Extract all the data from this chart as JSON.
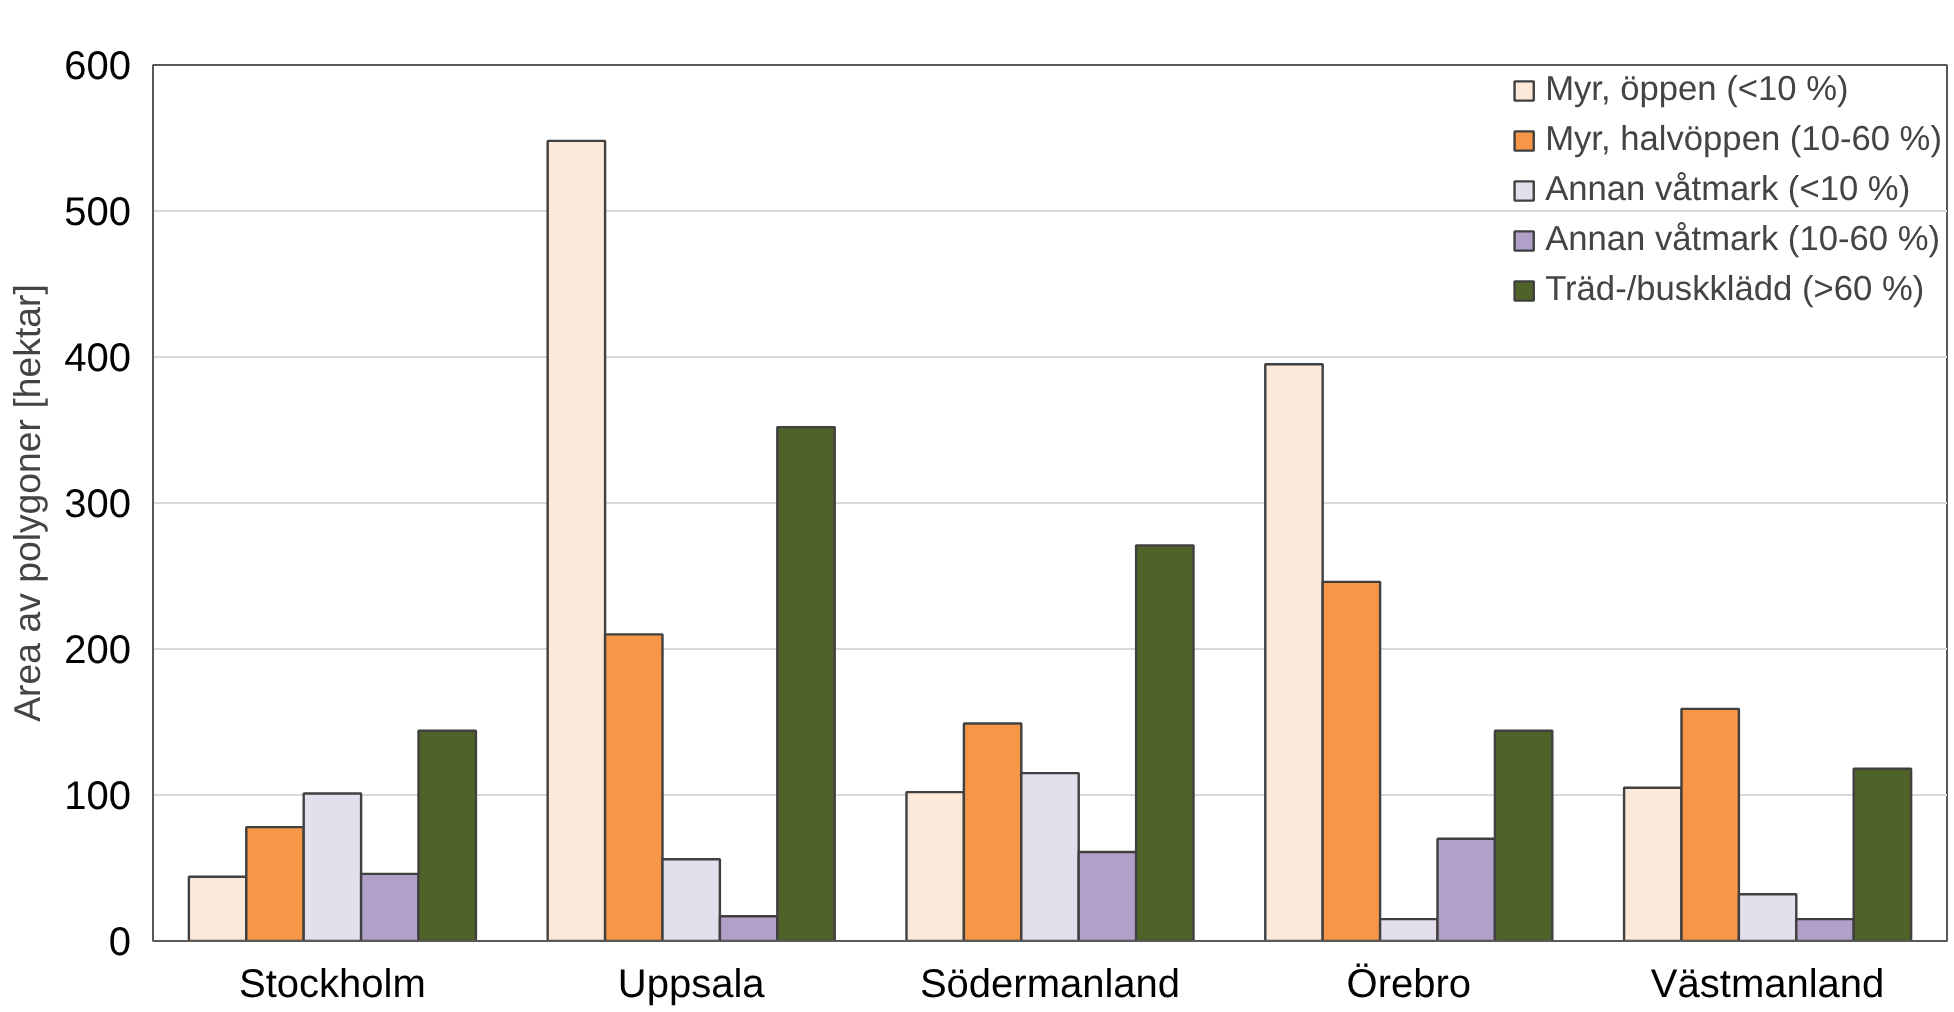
{
  "chart_data": {
    "type": "bar",
    "ylabel": "Area av polygoner [hektar]",
    "categories": [
      "Stockholm",
      "Uppsala",
      "Södermanland",
      "Örebro",
      "Västmanland"
    ],
    "series": [
      {
        "name": "Myr, öppen (<10 %)",
        "color": "#fde9d9",
        "values": [
          44,
          548,
          102,
          395,
          105
        ]
      },
      {
        "name": "Myr, halvöppen (10-60 %)",
        "color": "#f79646",
        "values": [
          78,
          210,
          149,
          246,
          159
        ]
      },
      {
        "name": "Annan våtmark (<10 %)",
        "color": "#e4dfec",
        "values": [
          101,
          56,
          115,
          15,
          32
        ]
      },
      {
        "name": "Annan våtmark (10-60 %)",
        "color": "#b1a0c7",
        "values": [
          46,
          17,
          61,
          70,
          15
        ]
      },
      {
        "name": "Träd-/buskklädd (>60 %)",
        "color": "#4f6228",
        "values": [
          144,
          352,
          271,
          144,
          118
        ]
      }
    ],
    "ylim": [
      0,
      600
    ],
    "yticks": [
      0,
      100,
      200,
      300,
      400,
      500,
      600
    ],
    "grid": "y",
    "legend": "top right"
  }
}
